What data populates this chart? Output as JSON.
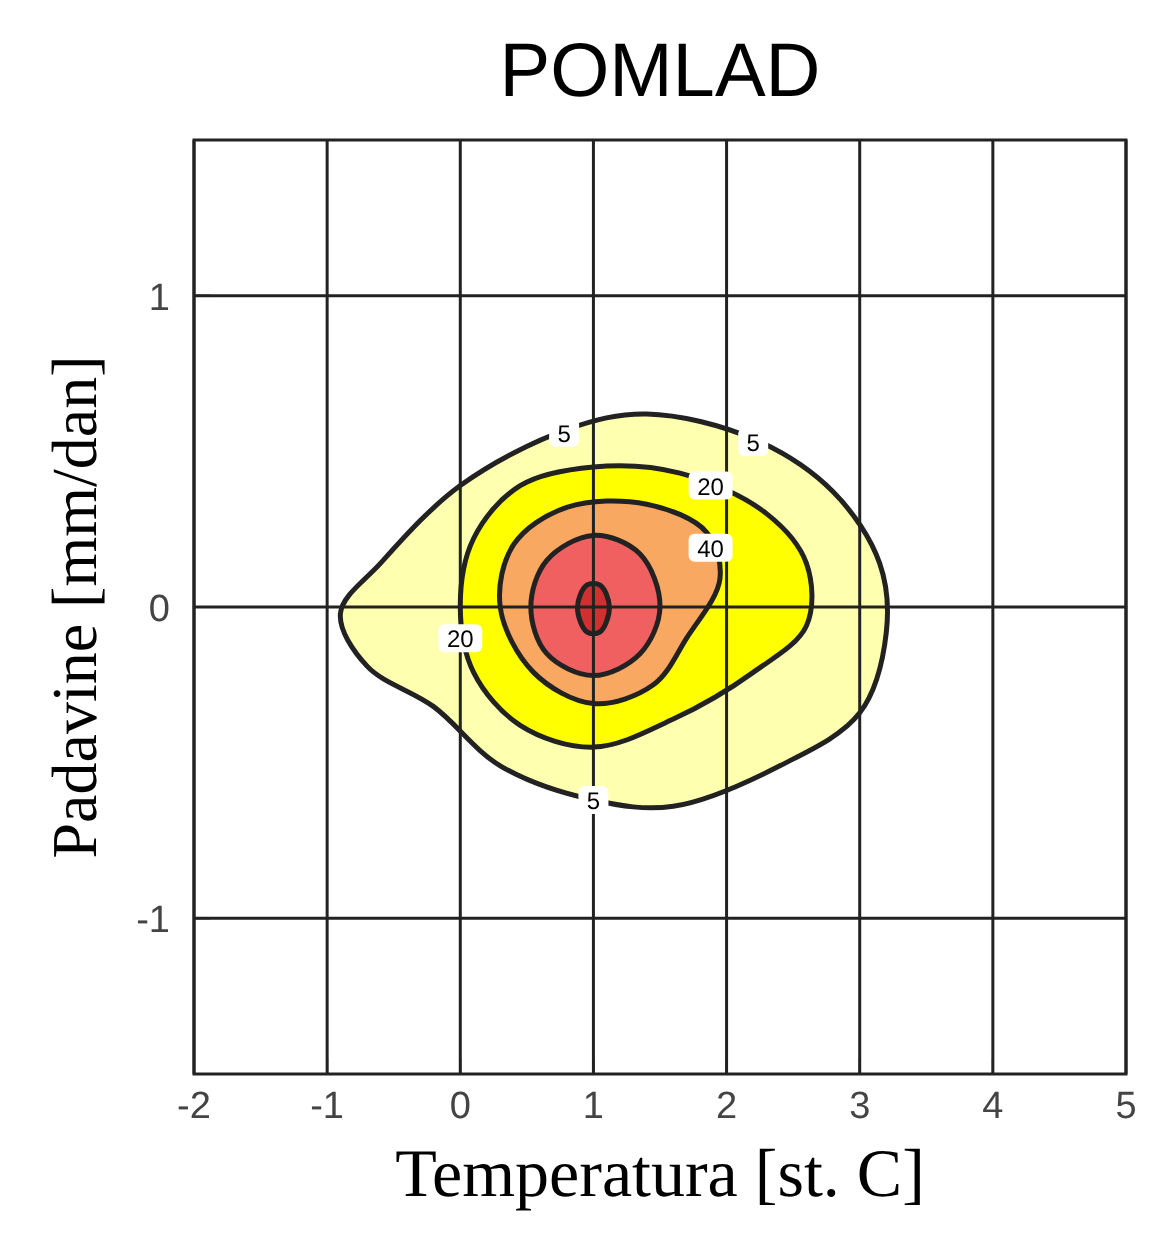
{
  "chart_data": {
    "type": "area",
    "title": "POMLAD",
    "xlabel": "Temperatura [st. C]",
    "ylabel": "Padavine [mm/dan]",
    "xlim": [
      -2,
      5
    ],
    "ylim": [
      -1.5,
      1.5
    ],
    "xticks": [
      -2,
      -1,
      0,
      1,
      2,
      3,
      4,
      5
    ],
    "yticks": [
      -1,
      0,
      1
    ],
    "grid": true,
    "series": [
      {
        "color": "#ffffb0",
        "x": [
          -0.9,
          -0.6,
          0,
          0.8,
          1.4,
          2.2,
          2.8,
          3.15,
          3.2,
          3.0,
          2.4,
          1.6,
          1.0,
          0.3,
          -0.2,
          -0.7
        ],
        "values": [
          -0.02,
          0.14,
          0.39,
          0.57,
          0.62,
          0.54,
          0.37,
          0.14,
          -0.08,
          -0.34,
          -0.51,
          -0.64,
          -0.62,
          -0.51,
          -0.32,
          -0.19
        ]
      },
      {
        "color": "#ffff00",
        "x": [
          0,
          0.1,
          0.45,
          1.0,
          1.65,
          2.3,
          2.6,
          2.6,
          2.2,
          1.6,
          1.0,
          0.45,
          0.1
        ],
        "values": [
          0,
          0.22,
          0.39,
          0.45,
          0.43,
          0.3,
          0.14,
          -0.06,
          -0.21,
          -0.36,
          -0.45,
          -0.38,
          -0.21
        ]
      },
      {
        "color": "#f8a860",
        "x": [
          0.3,
          0.4,
          0.8,
          1.4,
          1.85,
          1.95,
          1.7,
          1.45,
          1.0,
          0.55
        ],
        "values": [
          0,
          0.2,
          0.32,
          0.33,
          0.24,
          0.09,
          -0.1,
          -0.25,
          -0.31,
          -0.21
        ]
      },
      {
        "color": "#f06060",
        "x": [
          0.53,
          0.65,
          1.0,
          1.35,
          1.5,
          1.35,
          1.0,
          0.65
        ],
        "values": [
          0,
          0.15,
          0.23,
          0.17,
          0,
          -0.15,
          -0.22,
          -0.15
        ]
      },
      {
        "color": "#d03030",
        "x": [
          1.12,
          1.05,
          0.95,
          0.88,
          0.95,
          1.05
        ],
        "values": [
          0,
          0.07,
          0.07,
          0,
          -0.08,
          -0.08
        ]
      }
    ],
    "annotations": [
      {
        "text": "5",
        "x": 0.78,
        "y": 0.56
      },
      {
        "text": "5",
        "x": 2.2,
        "y": 0.53
      },
      {
        "text": "5",
        "x": 1.0,
        "y": -0.62
      },
      {
        "text": "20",
        "x": 1.88,
        "y": 0.39
      },
      {
        "text": "20",
        "x": 0,
        "y": -0.1
      },
      {
        "text": "40",
        "x": 1.88,
        "y": 0.19
      }
    ]
  }
}
